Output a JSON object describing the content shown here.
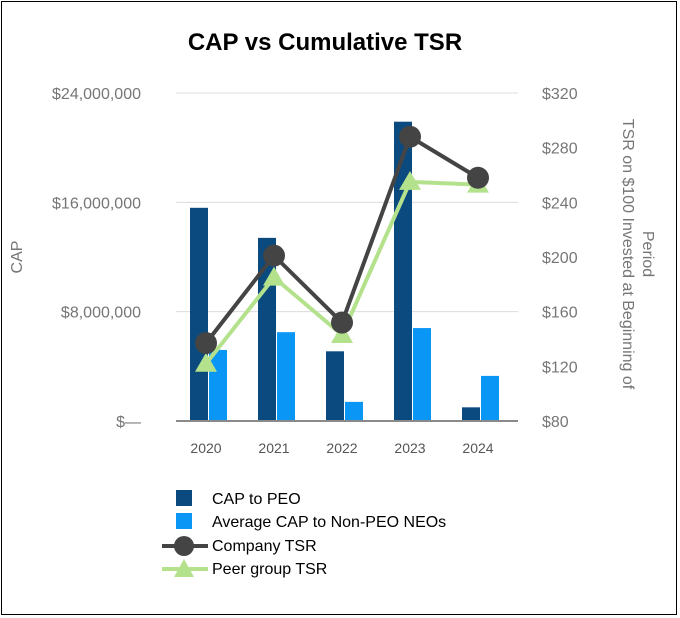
{
  "chart_data": {
    "type": "bar",
    "title": "CAP vs Cumulative TSR",
    "categories": [
      "2020",
      "2021",
      "2022",
      "2023",
      "2024"
    ],
    "left_axis": {
      "label": "CAP",
      "range": [
        0,
        24000000
      ],
      "ticks": [
        0,
        8000000,
        16000000,
        24000000
      ],
      "tick_labels": [
        "$—",
        "$8,000,000",
        "$16,000,000",
        "$24,000,000"
      ]
    },
    "right_axis": {
      "label": "TSR on $100 Invested at Beginning of Period",
      "label_lines": [
        "TSR on $100 Invested at Beginning of",
        "Period"
      ],
      "range": [
        80,
        320
      ],
      "ticks": [
        80,
        120,
        160,
        200,
        240,
        280,
        320
      ],
      "tick_labels": [
        "$80",
        "$120",
        "$160",
        "$200",
        "$240",
        "$280",
        "$320"
      ]
    },
    "bar_series": [
      {
        "name": "CAP to PEO",
        "color": "#0B4A7E",
        "values": [
          15600000,
          13400000,
          5100000,
          21900000,
          1000000
        ]
      },
      {
        "name": "Average CAP to Non-PEO NEOs",
        "color": "#0A96F5",
        "values": [
          5200000,
          6500000,
          1400000,
          6800000,
          3300000
        ]
      }
    ],
    "line_series": [
      {
        "name": "Company TSR",
        "color": "#444444",
        "marker": "circle",
        "values": [
          137,
          201,
          152,
          288,
          258
        ]
      },
      {
        "name": "Peer group TSR",
        "color": "#B4E28C",
        "marker": "triangle",
        "values": [
          122,
          185,
          143,
          255,
          253
        ]
      }
    ],
    "grid": true,
    "legend_position": "bottom"
  }
}
